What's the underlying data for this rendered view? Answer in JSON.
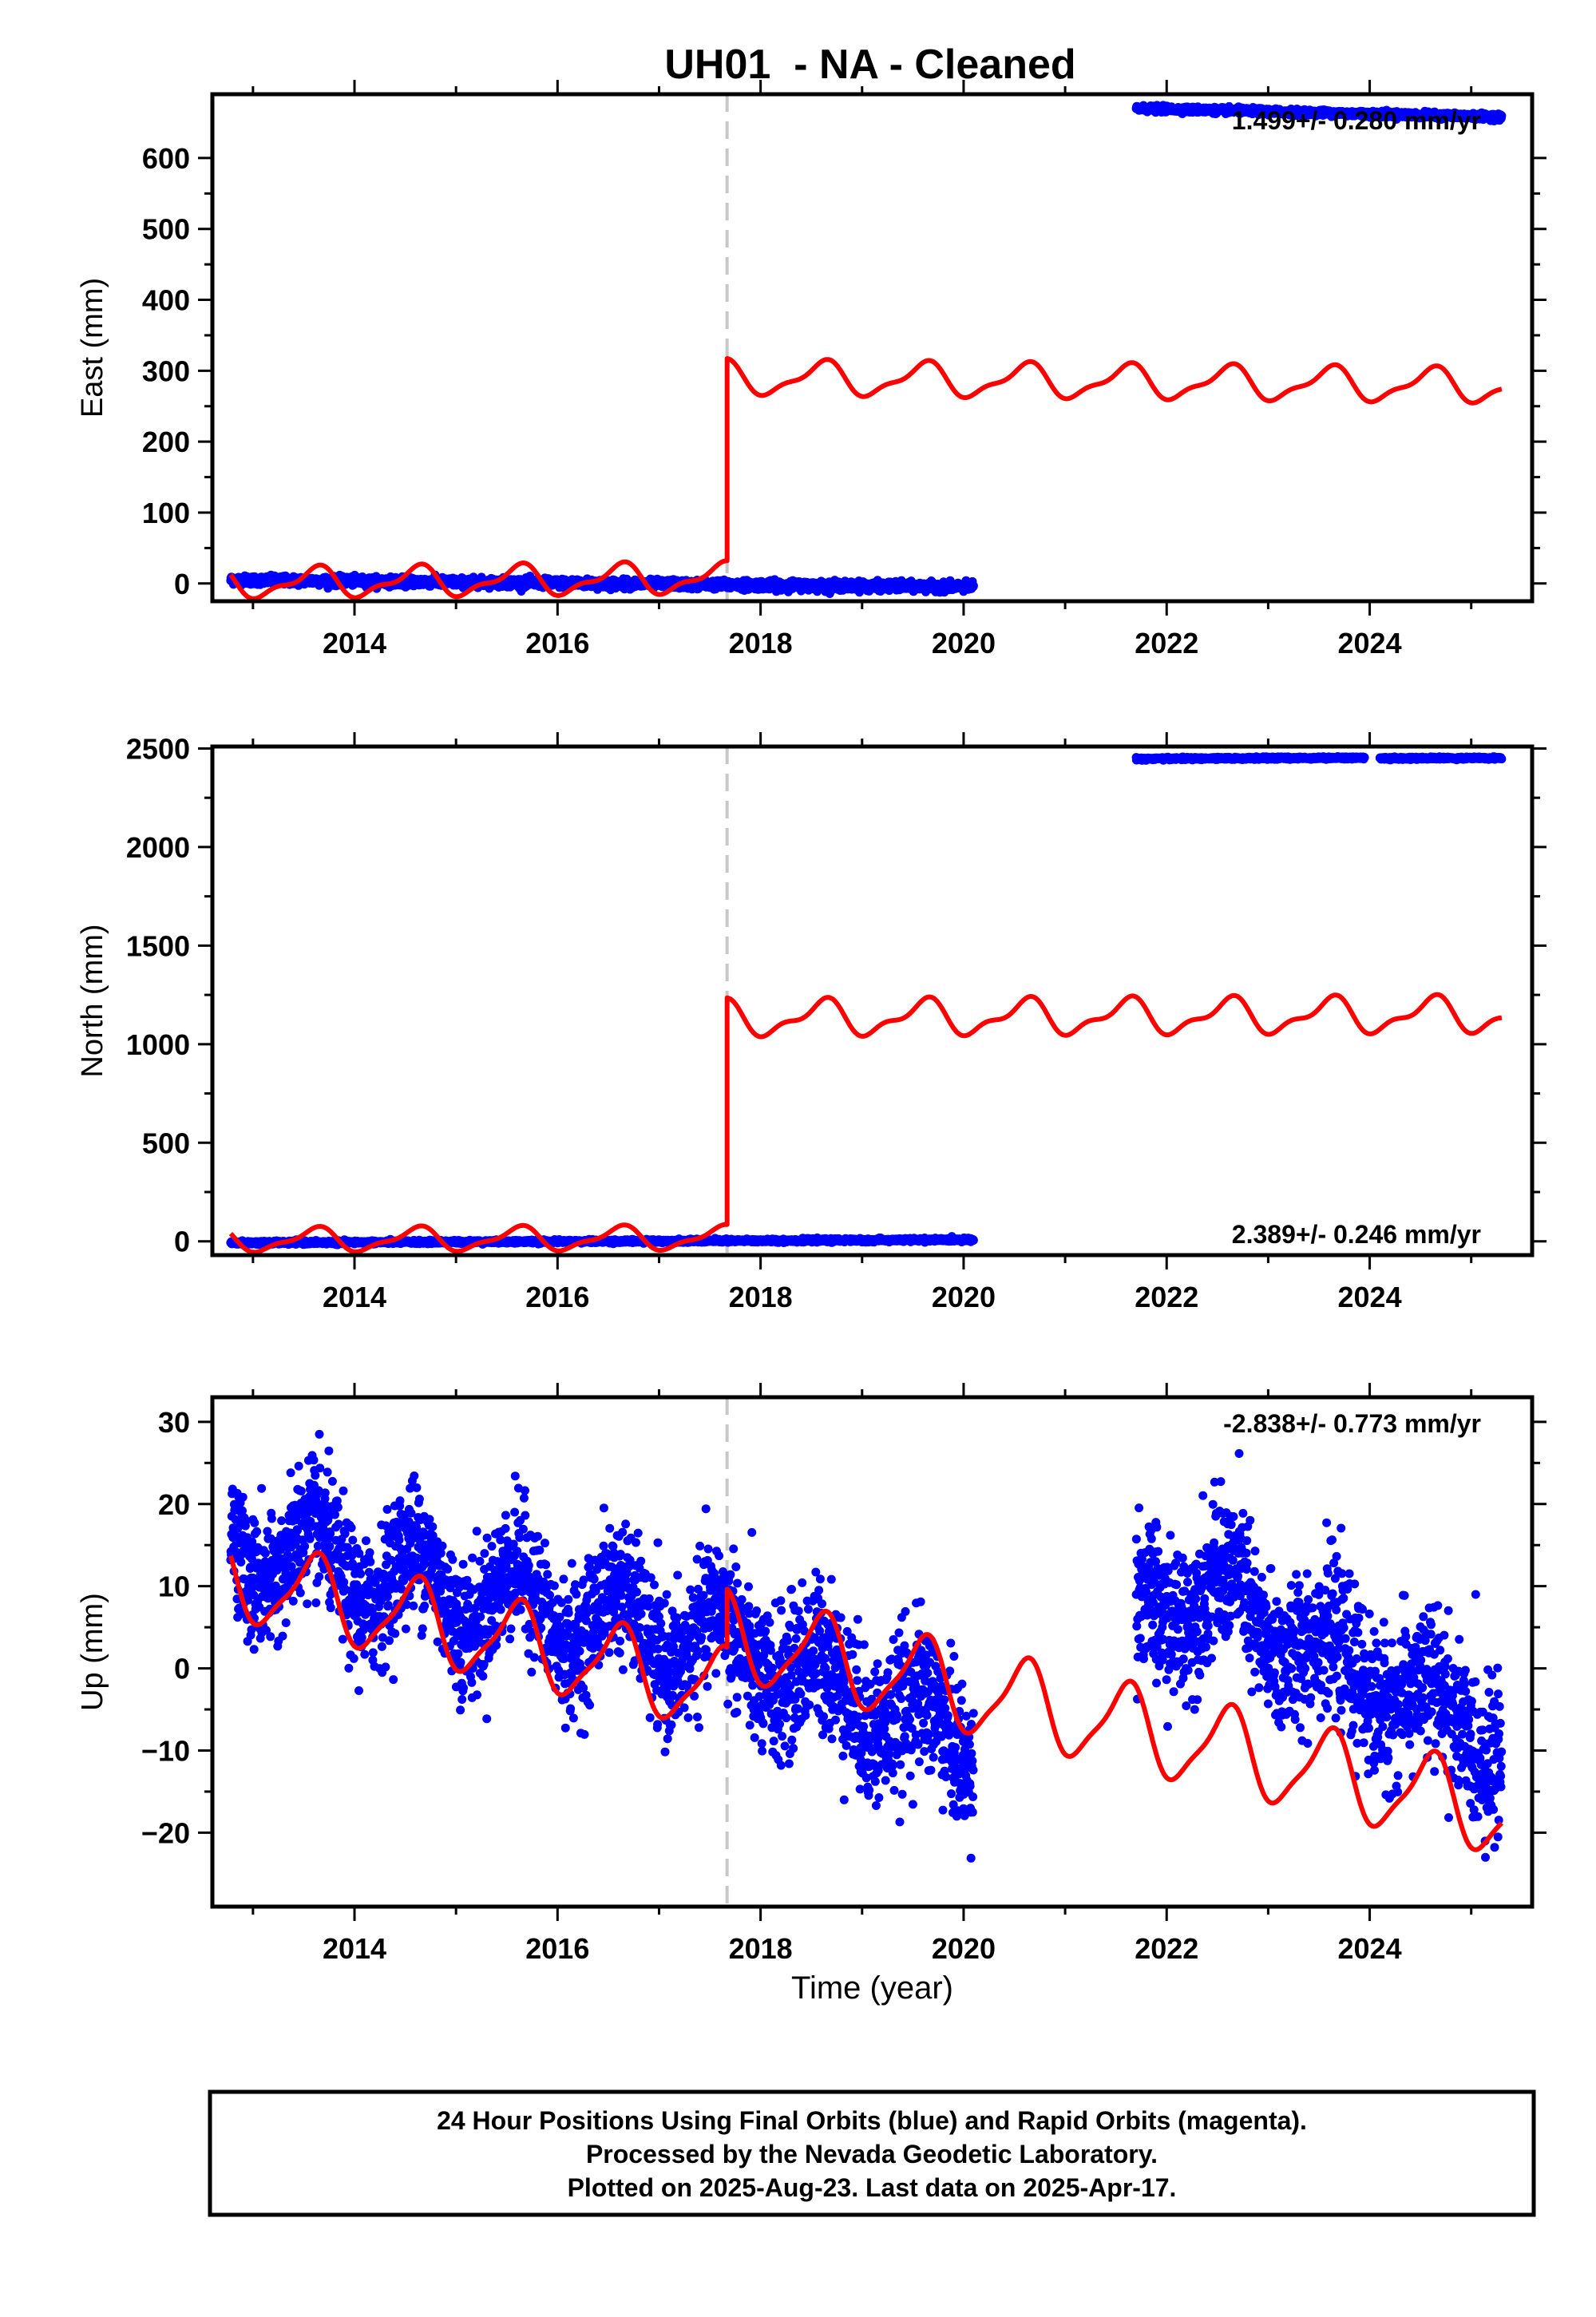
{
  "title": "UH01  - NA - Cleaned",
  "colors": {
    "final": "#0000ff",
    "model": "#ff0000",
    "offset": "#c8c8c8",
    "frame": "#000000"
  },
  "chart_data": [
    {
      "type": "scatter",
      "panel": "east",
      "ylabel": "East (mm)",
      "xlabel": "",
      "xlim": [
        2012.6,
        2025.6
      ],
      "ylim": [
        -25,
        690
      ],
      "xticks": [
        "2014",
        "2016",
        "2018",
        "2020",
        "2022",
        "2024"
      ],
      "xtick_values": [
        2014,
        2016,
        2018,
        2020,
        2022,
        2024
      ],
      "yticks": [
        "0",
        "100",
        "200",
        "300",
        "400",
        "500",
        "600"
      ],
      "ytick_values": [
        0,
        100,
        200,
        300,
        400,
        500,
        600
      ],
      "rate_label": "1.499+/- 0.280 mm/yr",
      "offset_epoch": 2017.67,
      "series": [
        {
          "kind": "points",
          "segments": [
            {
              "x_start": 2012.78,
              "x_end": 2020.1,
              "y_start": 5,
              "y_end": -5,
              "noise": 3
            },
            {
              "x_start": 2021.7,
              "x_end": 2025.3,
              "y_start": 670,
              "y_end": 658,
              "noise": 2
            }
          ]
        },
        {
          "kind": "model",
          "segments": [
            {
              "x_start": 2012.78,
              "x_end": 2017.67,
              "base": 0,
              "slope": 1.5,
              "annual": 19,
              "semiannual": 8
            },
            {
              "x_start": 2017.67,
              "x_end": 2025.3,
              "base": 290,
              "slope": -1.5,
              "annual": 22,
              "semiannual": 8
            }
          ]
        }
      ]
    },
    {
      "type": "scatter",
      "panel": "north",
      "ylabel": "North (mm)",
      "xlabel": "",
      "xlim": [
        2012.6,
        2025.6
      ],
      "ylim": [
        -70,
        2510
      ],
      "xticks": [
        "2014",
        "2016",
        "2018",
        "2020",
        "2022",
        "2024"
      ],
      "xtick_values": [
        2014,
        2016,
        2018,
        2020,
        2022,
        2024
      ],
      "yticks": [
        "0",
        "500",
        "1000",
        "1500",
        "2000",
        "2500"
      ],
      "ytick_values": [
        0,
        500,
        1000,
        1500,
        2000,
        2500
      ],
      "rate_label": "2.389+/- 0.246 mm/yr",
      "offset_epoch": 2017.67,
      "series": [
        {
          "kind": "points",
          "segments": [
            {
              "x_start": 2012.78,
              "x_end": 2020.1,
              "y_start": -8,
              "y_end": 8,
              "noise": 4
            },
            {
              "x_start": 2021.7,
              "x_end": 2023.95,
              "y_start": 2448,
              "y_end": 2453,
              "noise": 3
            },
            {
              "x_start": 2024.1,
              "x_end": 2025.3,
              "y_start": 2450,
              "y_end": 2452,
              "noise": 3
            }
          ]
        },
        {
          "kind": "model",
          "segments": [
            {
              "x_start": 2012.78,
              "x_end": 2017.67,
              "base": 5,
              "slope": 2.4,
              "annual": 55,
              "semiannual": 20
            },
            {
              "x_start": 2017.67,
              "x_end": 2025.3,
              "base": 1130,
              "slope": 2.4,
              "annual": 80,
              "semiannual": 35
            }
          ]
        }
      ]
    },
    {
      "type": "scatter",
      "panel": "up",
      "ylabel": "Up (mm)",
      "xlabel": "Time (year)",
      "xlim": [
        2012.6,
        2025.6
      ],
      "ylim": [
        -29,
        33
      ],
      "xticks": [
        "2014",
        "2016",
        "2018",
        "2020",
        "2022",
        "2024"
      ],
      "xtick_values": [
        2014,
        2016,
        2018,
        2020,
        2022,
        2024
      ],
      "yticks": [
        "30",
        "20",
        "10",
        "0",
        "−10",
        "−20"
      ],
      "ytick_values": [
        30,
        20,
        10,
        0,
        -10,
        -20
      ],
      "rate_label": "-2.838+/- 0.773 mm/yr",
      "offset_epoch": 2017.67,
      "series": [
        {
          "kind": "points",
          "segments": [
            {
              "x_start": 2012.78,
              "x_end": 2017.67,
              "base": 15,
              "slope": -2.5,
              "annual": 4.5,
              "noise": 4
            },
            {
              "x_start": 2017.67,
              "x_end": 2020.1,
              "base": 3,
              "slope": -5.0,
              "annual": 3.5,
              "noise": 4.5
            },
            {
              "x_start": 2021.7,
              "x_end": 2022.8,
              "base": 8,
              "slope": 1.0,
              "annual": 3,
              "noise": 4.5
            },
            {
              "x_start": 2022.8,
              "x_end": 2025.3,
              "base": 6,
              "slope": -6.0,
              "annual": 3,
              "noise": 4.5
            }
          ]
        },
        {
          "kind": "model",
          "segments": [
            {
              "x_start": 2012.78,
              "x_end": 2017.67,
              "base": 11,
              "slope": -2.838,
              "annual": 4.8,
              "semiannual": 1.2
            },
            {
              "x_start": 2017.67,
              "x_end": 2025.3,
              "base": 4,
              "slope": -2.838,
              "annual": 5.0,
              "semiannual": 1.2
            }
          ]
        }
      ]
    }
  ],
  "footer": {
    "line1": "24 Hour Positions Using Final Orbits (blue) and Rapid Orbits (magenta).",
    "line2": "Processed by the Nevada Geodetic Laboratory.",
    "line3": "Plotted on 2025-Aug-23. Last data on 2025-Apr-17."
  }
}
